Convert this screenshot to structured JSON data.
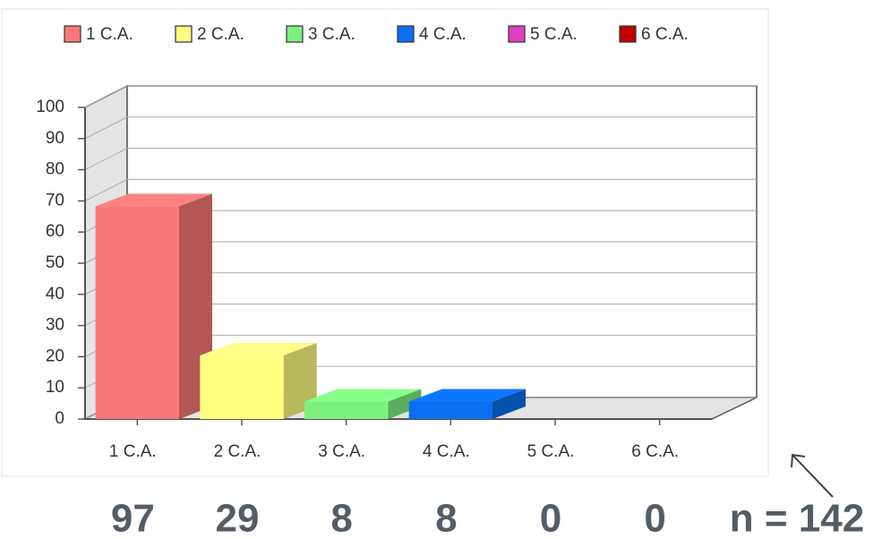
{
  "chart_data": {
    "type": "bar3d",
    "categories": [
      "1 C.A.",
      "2 C.A.",
      "3 C.A.",
      "4 C.A.",
      "5 C.A.",
      "6 C.A."
    ],
    "values": [
      68.3,
      20.4,
      5.6,
      5.6,
      0,
      0
    ],
    "colors": [
      "#f87878",
      "#ffff80",
      "#7ef07e",
      "#0a6ff0",
      "#e040c0",
      "#c00000"
    ],
    "counts": [
      97,
      29,
      8,
      8,
      0,
      0
    ],
    "annotation": "n = 142",
    "ylim": [
      0,
      100
    ],
    "yticks": [
      0,
      10,
      20,
      30,
      40,
      50,
      60,
      70,
      80,
      90,
      100
    ],
    "grid": true,
    "legend": "top"
  }
}
